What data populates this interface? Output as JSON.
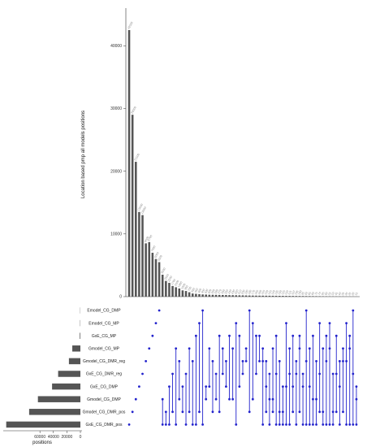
{
  "chart_data": {
    "type": "bar",
    "upset": true,
    "intersection_size_axis": {
      "label": "Location based pmp all models positions",
      "ylim": [
        0,
        46000
      ],
      "ticks": [
        0,
        10000,
        20000,
        30000,
        40000
      ],
      "tick_labels": [
        "0",
        "10000",
        "20000",
        "30000",
        "40000"
      ]
    },
    "intersection_sizes": [
      42500,
      29000,
      21500,
      13500,
      13000,
      8500,
      8700,
      7000,
      6000,
      5500,
      3500,
      2500,
      2200,
      1700,
      1500,
      1300,
      1000,
      900,
      700,
      500,
      450,
      400,
      350,
      330,
      300,
      290,
      280,
      270,
      260,
      250,
      240,
      230,
      220,
      210,
      200,
      190,
      180,
      170,
      165,
      160,
      155,
      150,
      145,
      140,
      135,
      130,
      125,
      120,
      115,
      110,
      105,
      100,
      95,
      90,
      85,
      80,
      75,
      70,
      65,
      60,
      55,
      50,
      45,
      40,
      35,
      30,
      25,
      20,
      15
    ],
    "sets": [
      "Emodel_CG_DMP",
      "Emodel_CG_MP",
      "GxE_CG_MP",
      "Gmodel_CG_MP",
      "Gmodel_CG_DMR_reg",
      "GxE_CG_DMR_reg",
      "GxE_CG_DMP",
      "Gmodel_CG_DMP",
      "Gmodel_CG_DMR_pos",
      "GxE_CG_DMR_pos"
    ],
    "set_sizes": [
      300,
      400,
      900,
      12000,
      17000,
      33000,
      42000,
      63000,
      76000,
      110000
    ],
    "set_size_axis": {
      "label": "positions",
      "ticks": [
        60000,
        40000,
        20000,
        0
      ],
      "tick_labels": [
        "60000",
        "40000",
        "20000",
        "0"
      ],
      "xlim": [
        0,
        112000
      ]
    },
    "matrix_color": "#2222cc",
    "bar_color": "#555555",
    "combinations": [
      [
        9
      ],
      [
        8
      ],
      [
        7
      ],
      [
        6
      ],
      [
        5
      ],
      [
        4
      ],
      [
        3
      ],
      [
        2
      ],
      [
        1
      ],
      [
        0
      ],
      [
        7,
        9
      ],
      [
        8,
        9
      ],
      [
        6,
        9
      ],
      [
        5,
        8
      ],
      [
        3,
        9
      ],
      [
        4,
        7
      ],
      [
        6,
        8
      ],
      [
        5,
        9
      ],
      [
        3,
        8
      ],
      [
        4,
        9
      ],
      [
        2,
        9
      ],
      [
        1,
        8
      ],
      [
        0,
        9
      ],
      [
        6,
        7
      ],
      [
        3,
        6
      ],
      [
        4,
        8
      ],
      [
        5,
        7
      ],
      [
        2,
        8
      ],
      [
        3,
        5
      ],
      [
        4,
        6
      ],
      [
        2,
        7
      ],
      [
        3,
        7
      ],
      [
        1,
        9
      ],
      [
        2,
        6
      ],
      [
        4,
        5
      ],
      [
        3,
        4
      ],
      [
        0,
        8
      ],
      [
        1,
        7
      ],
      [
        2,
        5
      ],
      [
        2,
        4
      ],
      [
        3,
        4,
        9
      ],
      [
        4,
        6,
        8
      ],
      [
        5,
        7,
        9
      ],
      [
        3,
        7,
        8
      ],
      [
        2,
        5,
        9
      ],
      [
        4,
        8,
        9
      ],
      [
        6,
        8,
        9
      ],
      [
        1,
        6,
        9
      ],
      [
        3,
        5,
        9
      ],
      [
        2,
        6,
        8
      ],
      [
        4,
        5,
        9
      ],
      [
        2,
        3,
        8
      ],
      [
        5,
        6,
        9
      ],
      [
        0,
        4,
        9
      ],
      [
        3,
        6,
        9
      ],
      [
        2,
        7,
        9
      ],
      [
        4,
        7,
        9
      ],
      [
        1,
        5,
        8
      ],
      [
        3,
        8,
        9
      ],
      [
        2,
        4,
        9
      ],
      [
        1,
        3,
        9
      ],
      [
        5,
        8,
        9
      ],
      [
        2,
        5,
        8
      ],
      [
        4,
        6,
        9
      ],
      [
        3,
        4,
        8
      ],
      [
        1,
        4,
        9
      ],
      [
        2,
        3,
        9
      ],
      [
        0,
        5,
        9
      ],
      [
        6,
        7,
        9
      ]
    ]
  }
}
